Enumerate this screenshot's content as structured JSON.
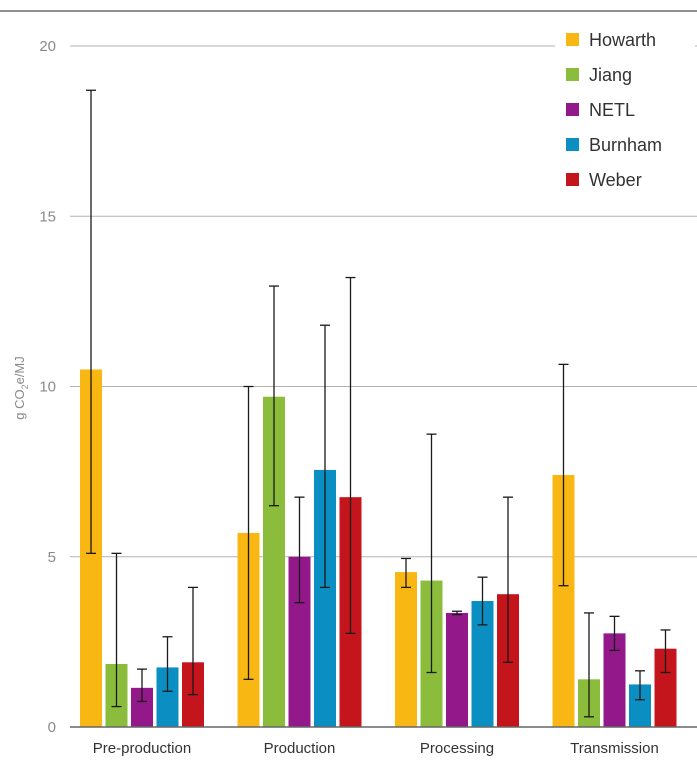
{
  "colors": {
    "Howarth": "#f9b714",
    "Jiang": "#8bbc3c",
    "NETL": "#93198b",
    "Burnham": "#0b8fc2",
    "Weber": "#c4151c",
    "grid": "#b3b3b3",
    "axis_text": "#8a8a8a",
    "label_text": "#333333"
  },
  "chart_data": {
    "type": "bar",
    "ylabel_main": "g CO",
    "ylabel_sub": "2",
    "ylabel_tail": "e/MJ",
    "ylim": [
      0,
      20
    ],
    "yticks": [
      0,
      5,
      10,
      15,
      20
    ],
    "grid": true,
    "legend_position": "top-right",
    "categories": [
      "Pre-production",
      "Production",
      "Processing",
      "Transmission"
    ],
    "series": [
      {
        "name": "Howarth",
        "values": [
          10.5,
          5.7,
          4.55,
          7.4
        ],
        "err_low": [
          5.1,
          1.4,
          4.1,
          4.15
        ],
        "err_high": [
          18.7,
          10.0,
          4.95,
          10.65
        ]
      },
      {
        "name": "Jiang",
        "values": [
          1.85,
          9.7,
          4.3,
          1.4
        ],
        "err_low": [
          0.6,
          6.5,
          1.6,
          0.3
        ],
        "err_high": [
          5.1,
          12.95,
          8.6,
          3.35
        ]
      },
      {
        "name": "NETL",
        "values": [
          1.15,
          5.0,
          3.35,
          2.75
        ],
        "err_low": [
          0.75,
          3.65,
          3.3,
          2.25
        ],
        "err_high": [
          1.7,
          6.75,
          3.4,
          3.25
        ]
      },
      {
        "name": "Burnham",
        "values": [
          1.75,
          7.55,
          3.7,
          1.25
        ],
        "err_low": [
          1.05,
          4.1,
          3.0,
          0.8
        ],
        "err_high": [
          2.65,
          11.8,
          4.4,
          1.65
        ]
      },
      {
        "name": "Weber",
        "values": [
          1.9,
          6.75,
          3.9,
          2.3
        ],
        "err_low": [
          0.95,
          2.75,
          1.9,
          1.6
        ],
        "err_high": [
          4.1,
          13.2,
          6.75,
          2.85
        ]
      }
    ]
  }
}
